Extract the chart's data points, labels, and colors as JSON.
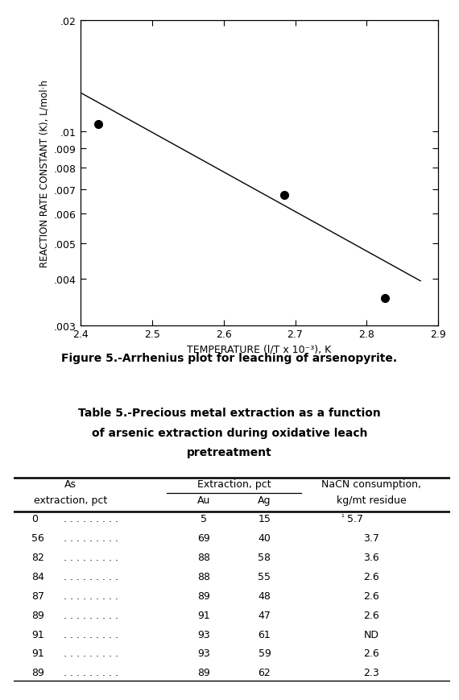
{
  "plot": {
    "scatter_x": [
      2.425,
      2.685,
      2.825
    ],
    "scatter_y": [
      0.0105,
      0.00675,
      0.00355
    ],
    "line_x": [
      2.4,
      2.875
    ],
    "line_y": [
      0.01275,
      0.00395
    ],
    "xlim": [
      2.4,
      2.9
    ],
    "ylim": [
      0.003,
      0.02
    ],
    "xticks": [
      2.4,
      2.5,
      2.6,
      2.7,
      2.8,
      2.9
    ],
    "yticks": [
      0.003,
      0.004,
      0.005,
      0.006,
      0.007,
      0.008,
      0.009,
      0.01,
      0.02
    ],
    "ytick_labels": [
      ".003",
      ".004",
      ".005",
      ".006",
      ".007",
      ".008",
      ".009",
      ".01",
      ".02"
    ],
    "xlabel": "TEMPERATURE (l/T x 10⁻³), K",
    "ylabel": "REACTION RATE CONSTANT (K), L/mol·h",
    "figure_caption": "Figure 5.-Arrhenius plot for leaching of arsenopyrite."
  },
  "table": {
    "title_line1": "Table 5.-Precious metal extraction as a function",
    "title_line2": "of arsenic extraction during oxidative leach",
    "title_line3": "pretreatment",
    "header1_col0": "As",
    "header1_col12": "Extraction, pct",
    "header1_col3": "NaCN consumption,",
    "header2_col0": "extraction, pct",
    "header2_col1": "Au",
    "header2_col2": "Ag",
    "header2_col3": "kg/mt residue",
    "rows_col0": [
      "0",
      "56",
      "82",
      "84",
      "87",
      "89",
      "91",
      "91",
      "89"
    ],
    "rows_dots": [
      "  . . . . . . . . .",
      "  . . . . . . . . .",
      "  . . . . . . . . .",
      "  . . . . . . . . .",
      "  . . . . . . . . .",
      "  . . . . . . . . .",
      "  . . . . . . . . .",
      "  . . . . . . . . .",
      "  . . . . . . . . ."
    ],
    "rows_col1": [
      "5",
      "69",
      "88",
      "88",
      "89",
      "91",
      "93",
      "93",
      "89"
    ],
    "rows_col2": [
      "15",
      "40",
      "58",
      "55",
      "48",
      "47",
      "61",
      "59",
      "62"
    ],
    "rows_col3": [
      "5.7",
      "3.7",
      "3.6",
      "2.6",
      "2.6",
      "2.6",
      "ND",
      "2.6",
      "2.3"
    ],
    "rows_col3_super": [
      true,
      false,
      false,
      false,
      false,
      false,
      false,
      false,
      false
    ]
  }
}
